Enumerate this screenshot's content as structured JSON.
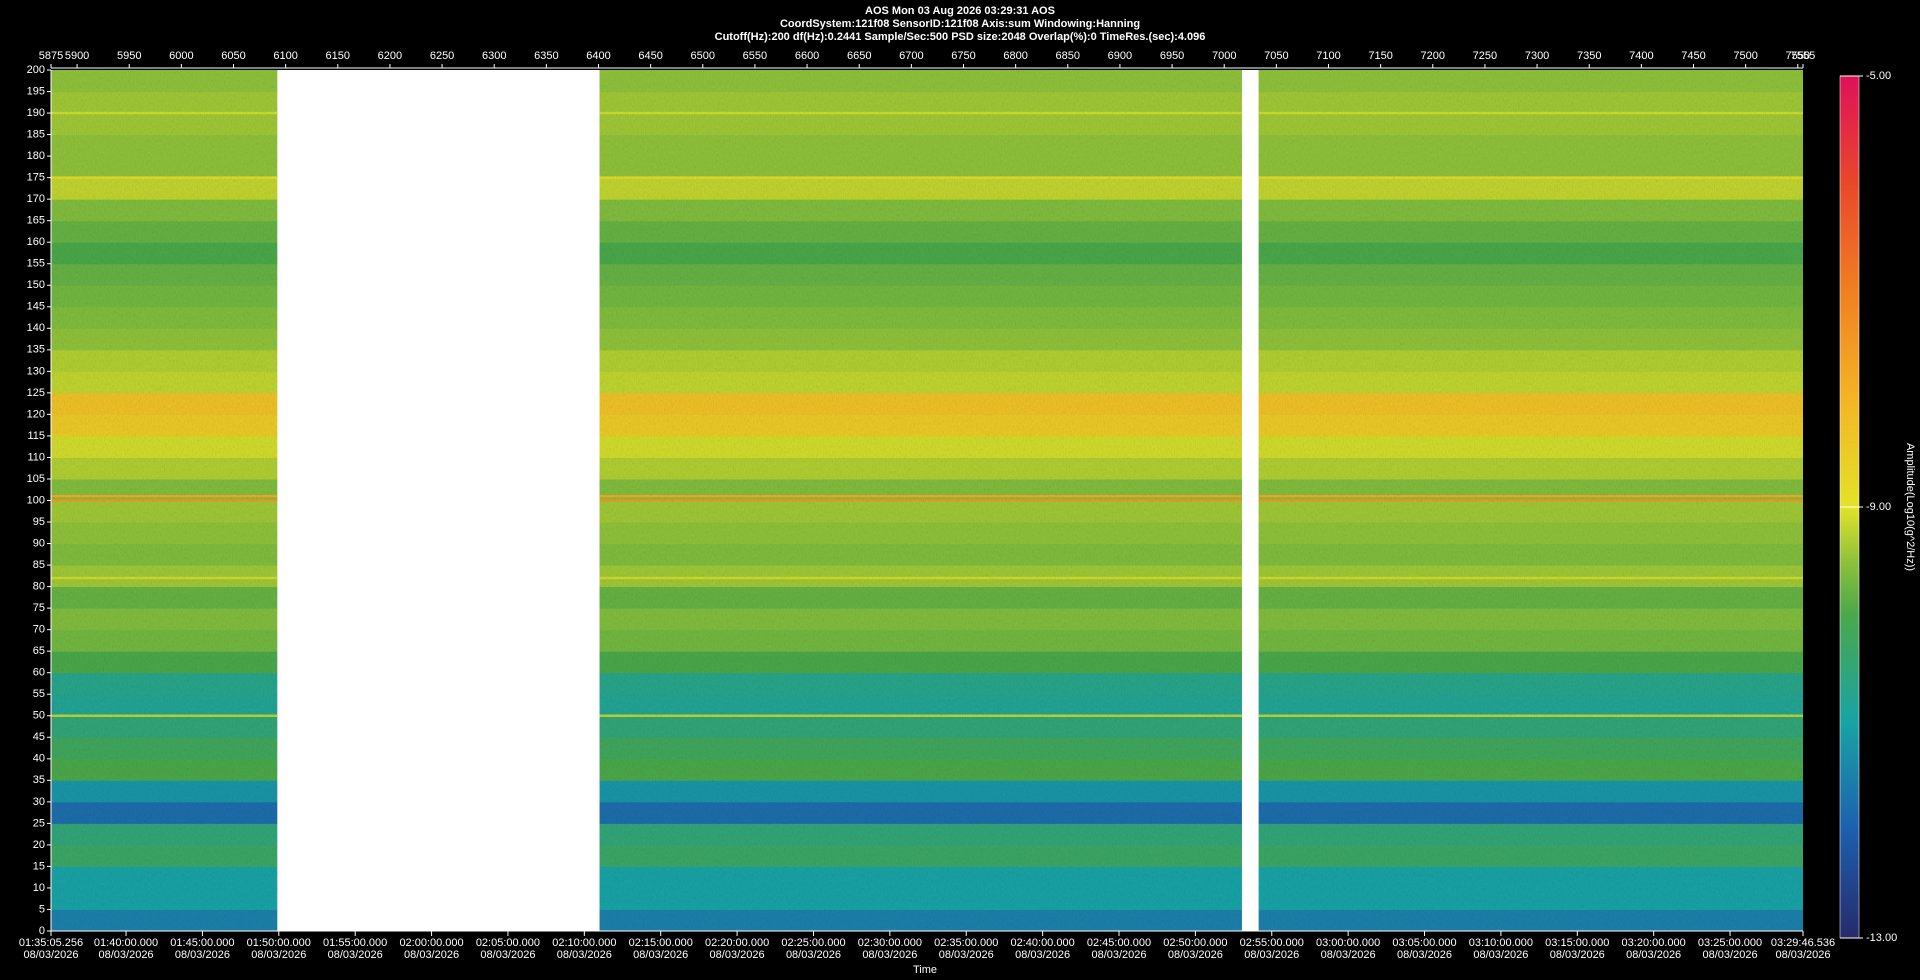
{
  "chart_data": {
    "type": "heatmap",
    "title": "AOS  Mon 03 Aug 2026 03:29:31  AOS",
    "subtitle": "CoordSystem:121f08   SensorID:121f08    Axis:sum     Windowing:Hanning",
    "info": "Cutoff(Hz):200      df(Hz):0.2441       Sample/Sec:500       PSD size:2048        Overlap(%):0        TimeRes.(sec):4.096",
    "x_label": "Time",
    "colorbar_label": "Amplitude(Log10(g^2/Hz))",
    "xlim": [
      5875,
      7555
    ],
    "xticks": [
      5875,
      5900,
      5950,
      6000,
      6050,
      6100,
      6150,
      6200,
      6250,
      6300,
      6350,
      6400,
      6450,
      6500,
      6550,
      6600,
      6650,
      6700,
      6750,
      6800,
      6850,
      6900,
      6950,
      7000,
      7050,
      7100,
      7150,
      7200,
      7250,
      7300,
      7350,
      7400,
      7450,
      7500,
      7550,
      7555
    ],
    "x2lim": [
      5705.256,
      12586.536
    ],
    "x2ticks": [
      {
        "value": 5705.256,
        "label": "01:35:05.256\n08/03/2026"
      },
      {
        "value": 6000,
        "label": "01:40:00.000\n08/03/2026"
      },
      {
        "value": 6300,
        "label": "01:45:00.000\n08/03/2026"
      },
      {
        "value": 6600,
        "label": "01:50:00.000\n08/03/2026"
      },
      {
        "value": 6900,
        "label": "01:55:00.000\n08/03/2026"
      },
      {
        "value": 7200,
        "label": "02:00:00.000\n08/03/2026"
      },
      {
        "value": 7500,
        "label": "02:05:00.000\n08/03/2026"
      },
      {
        "value": 7800,
        "label": "02:10:00.000\n08/03/2026"
      },
      {
        "value": 8100,
        "label": "02:15:00.000\n08/03/2026"
      },
      {
        "value": 8400,
        "label": "02:20:00.000\n08/03/2026"
      },
      {
        "value": 8700,
        "label": "02:25:00.000\n08/03/2026"
      },
      {
        "value": 9000,
        "label": "02:30:00.000\n08/03/2026"
      },
      {
        "value": 9300,
        "label": "02:35:00.000\n08/03/2026"
      },
      {
        "value": 9600,
        "label": "02:40:00.000\n08/03/2026"
      },
      {
        "value": 9900,
        "label": "02:45:00.000\n08/03/2026"
      },
      {
        "value": 10200,
        "label": "02:50:00.000\n08/03/2026"
      },
      {
        "value": 10500,
        "label": "02:55:00.000\n08/03/2026"
      },
      {
        "value": 10800,
        "label": "03:00:00.000\n08/03/2026"
      },
      {
        "value": 11100,
        "label": "03:05:00.000\n08/03/2026"
      },
      {
        "value": 11400,
        "label": "03:10:00.000\n08/03/2026"
      },
      {
        "value": 11700,
        "label": "03:15:00.000\n08/03/2026"
      },
      {
        "value": 12000,
        "label": "03:20:00.000\n08/03/2026"
      },
      {
        "value": 12300,
        "label": "03:25:00.000\n08/03/2026"
      },
      {
        "value": 12586.536,
        "label": "03:29:46.536\n08/03/2026"
      }
    ],
    "ylim": [
      0,
      200
    ],
    "yticks": [
      0,
      5,
      10,
      15,
      20,
      25,
      30,
      35,
      40,
      45,
      50,
      55,
      60,
      65,
      70,
      75,
      80,
      85,
      90,
      95,
      100,
      105,
      110,
      115,
      120,
      125,
      130,
      135,
      140,
      145,
      150,
      155,
      160,
      165,
      170,
      175,
      180,
      185,
      190,
      195,
      200
    ],
    "segments": [
      [
        5875,
        6092
      ],
      [
        6401,
        7017
      ],
      [
        7033,
        7555
      ]
    ],
    "bands": {
      "edges": [
        0,
        5,
        10,
        15,
        20,
        25,
        30,
        35,
        40,
        45,
        50,
        55,
        60,
        65,
        70,
        75,
        80,
        85,
        90,
        95,
        100,
        105,
        110,
        115,
        120,
        125,
        130,
        135,
        140,
        145,
        150,
        155,
        160,
        165,
        170,
        175,
        180,
        185,
        190,
        195,
        200
      ],
      "levels": [
        -11.5,
        -11,
        -11,
        -10.3,
        -10.5,
        -11.8,
        -11.2,
        -10,
        -10.2,
        -10.5,
        -10.8,
        -10.7,
        -10,
        -9.7,
        -9.6,
        -9.8,
        -9.4,
        -9.6,
        -9.5,
        -9.4,
        -9.6,
        -9.3,
        -9.1,
        -8.5,
        -8.3,
        -9.2,
        -9.3,
        -9.5,
        -9.6,
        -9.7,
        -9.8,
        -10,
        -9.8,
        -9.6,
        -9.2,
        -9.5,
        -9.5,
        -9.4,
        -9.4,
        -9.5
      ]
    },
    "tones": {
      "freqs": [
        50,
        82,
        100,
        101,
        175,
        190
      ],
      "levels": [
        -9.2,
        -9.1,
        -7.5,
        -7.8,
        -8.9,
        -9.1
      ]
    },
    "zlim": [
      -13,
      -5
    ],
    "zticks": [
      {
        "value": -5,
        "label": "-5.00"
      },
      {
        "value": -9,
        "label": "-9.00"
      },
      {
        "value": -13,
        "label": "-13.00"
      }
    ],
    "colormap": [
      {
        "value": -13,
        "color": "#272a6b"
      },
      {
        "value": -12,
        "color": "#1d5fae"
      },
      {
        "value": -11,
        "color": "#18a3a6"
      },
      {
        "value": -10,
        "color": "#4aa84a"
      },
      {
        "value": -9.5,
        "color": "#8fc23a"
      },
      {
        "value": -9,
        "color": "#e3e227"
      },
      {
        "value": -8,
        "color": "#f4b425"
      },
      {
        "value": -7,
        "color": "#f07f22"
      },
      {
        "value": -6,
        "color": "#e8482a"
      },
      {
        "value": -5,
        "color": "#e0105a"
      }
    ]
  }
}
